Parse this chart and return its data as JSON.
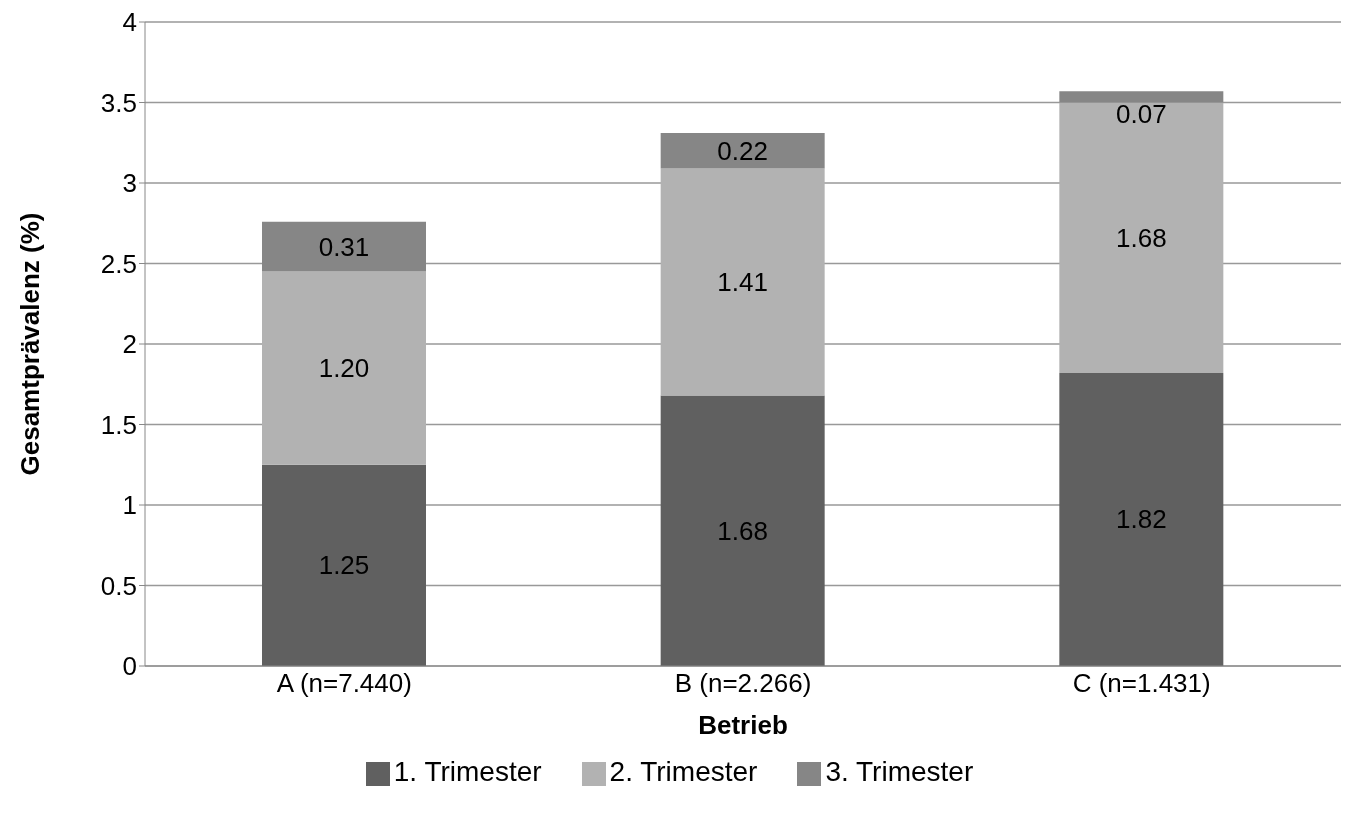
{
  "chart_data": {
    "type": "bar",
    "stacked": true,
    "xlabel": "Betrieb",
    "ylabel": "Gesamtprävalenz (%)",
    "categories": [
      "A (n=7.440)",
      "B (n=2.266)",
      "C (n=1.431)"
    ],
    "series": [
      {
        "name": "1. Trimester",
        "color": "#606060",
        "values": [
          1.25,
          1.68,
          1.82
        ],
        "value_labels": [
          "1.25",
          "1.68",
          "1.82"
        ]
      },
      {
        "name": "2. Trimester",
        "color": "#b2b2b2",
        "values": [
          1.2,
          1.41,
          1.68
        ],
        "value_labels": [
          "1.20",
          "1.41",
          "1.68"
        ]
      },
      {
        "name": "3. Trimester",
        "color": "#868686",
        "values": [
          0.31,
          0.22,
          0.07
        ],
        "value_labels": [
          "0.31",
          "0.22",
          "0.07"
        ]
      }
    ],
    "ylim": [
      0,
      4
    ],
    "yticks": [
      0,
      0.5,
      1,
      1.5,
      2,
      2.5,
      3,
      3.5,
      4
    ],
    "grid": "y",
    "legend": "bottom"
  }
}
